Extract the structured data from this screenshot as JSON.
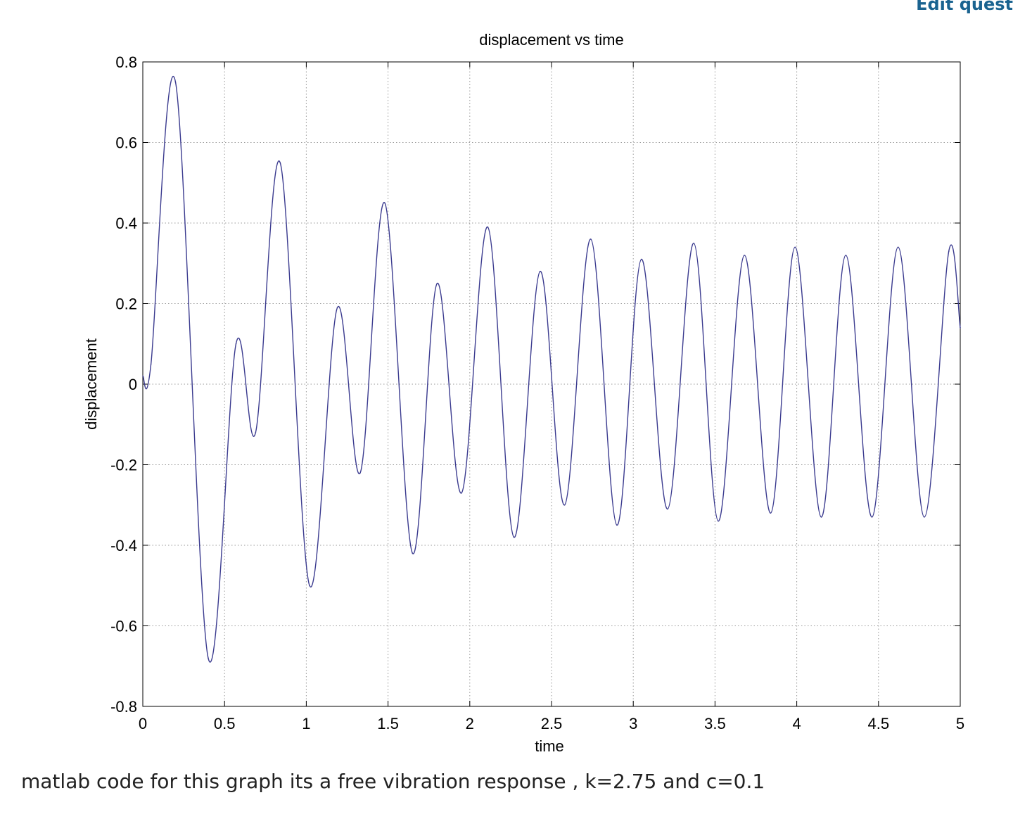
{
  "header": {
    "edit_link": "Edit quest"
  },
  "question": {
    "text": "matlab code for this graph its a free vibration response , k=2.75 and c=0.1"
  },
  "chart_data": {
    "type": "line",
    "title": "displacement vs time",
    "xlabel": "time",
    "ylabel": "displacement",
    "xlim": [
      0,
      5
    ],
    "ylim": [
      -0.8,
      0.8
    ],
    "xticks": [
      0,
      0.5,
      1,
      1.5,
      2,
      2.5,
      3,
      3.5,
      4,
      4.5,
      5
    ],
    "yticks": [
      -0.8,
      -0.6,
      -0.4,
      -0.2,
      0,
      0.2,
      0.4,
      0.6,
      0.8
    ],
    "xtick_labels": [
      "0",
      "0.5",
      "1",
      "1.5",
      "2",
      "2.5",
      "3",
      "3.5",
      "4",
      "4.5",
      "5"
    ],
    "ytick_labels": [
      "-0.8",
      "-0.6",
      "-0.4",
      "-0.2",
      "0",
      "0.2",
      "0.4",
      "0.6",
      "0.8"
    ],
    "grid": true,
    "line_color": "#3b3b8f",
    "series": [
      {
        "x": [
          0,
          0.05,
          0.2,
          0.4,
          0.57,
          0.69,
          0.84,
          1.02,
          1.19,
          1.33,
          1.48,
          1.65,
          1.8,
          1.95,
          2.11,
          2.27,
          2.43,
          2.58,
          2.74,
          2.9,
          3.05,
          3.21,
          3.37,
          3.52,
          3.68,
          3.84,
          3.99,
          4.15,
          4.3,
          4.46,
          4.62,
          4.78,
          4.93,
          5.0
        ],
        "values": [
          0.02,
          0.05,
          0.75,
          -0.68,
          0.1,
          -0.12,
          0.55,
          -0.5,
          0.19,
          -0.22,
          0.45,
          -0.42,
          0.25,
          -0.27,
          0.39,
          -0.38,
          0.28,
          -0.3,
          0.36,
          -0.35,
          0.31,
          -0.31,
          0.35,
          -0.34,
          0.32,
          -0.32,
          0.34,
          -0.33,
          0.32,
          -0.33,
          0.34,
          -0.33,
          0.33,
          0.14
        ]
      }
    ]
  }
}
